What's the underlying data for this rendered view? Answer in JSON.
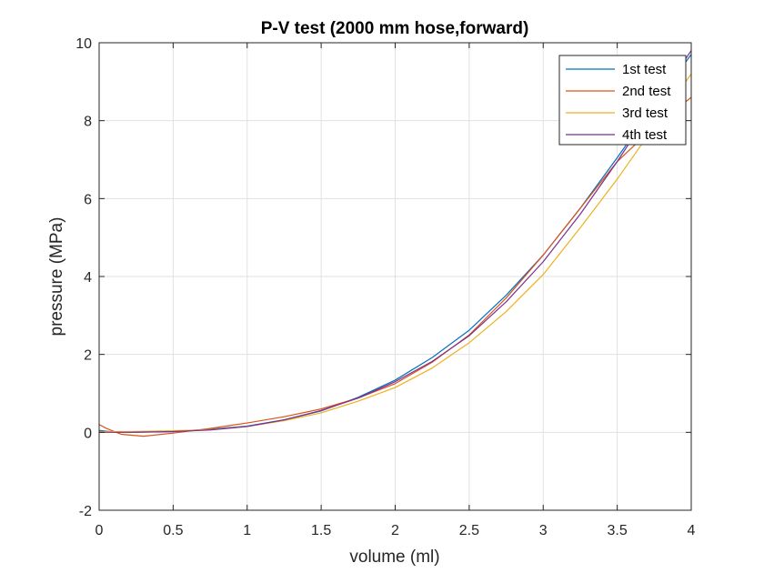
{
  "chart_data": {
    "type": "line",
    "title": "P-V test (2000 mm hose,forward)",
    "xlabel": "volume (ml)",
    "ylabel": "pressure (MPa)",
    "xlim": [
      0,
      4
    ],
    "ylim": [
      -2,
      10
    ],
    "xticks": [
      0,
      0.5,
      1,
      1.5,
      2,
      2.5,
      3,
      3.5,
      4
    ],
    "yticks": [
      -2,
      0,
      2,
      4,
      6,
      8,
      10
    ],
    "xtick_labels": [
      "0",
      "0.5",
      "1",
      "1.5",
      "2",
      "2.5",
      "3",
      "3.5",
      "4"
    ],
    "ytick_labels": [
      "-2",
      "0",
      "2",
      "4",
      "6",
      "8",
      "10"
    ],
    "grid": true,
    "legend_position": "top-right",
    "series": [
      {
        "name": "1st test",
        "color": "#0072BD",
        "x": [
          0,
          0.1,
          0.25,
          0.5,
          0.75,
          1,
          1.25,
          1.5,
          1.75,
          2,
          2.25,
          2.5,
          2.75,
          3,
          3.25,
          3.5,
          3.75,
          4
        ],
        "y": [
          0.05,
          0.01,
          0,
          0.02,
          0.08,
          0.16,
          0.32,
          0.55,
          0.9,
          1.34,
          1.92,
          2.62,
          3.52,
          4.55,
          5.75,
          7.05,
          8.4,
          9.7
        ]
      },
      {
        "name": "2nd test",
        "color": "#D95319",
        "x": [
          0,
          0.05,
          0.15,
          0.3,
          0.5,
          0.75,
          1,
          1.25,
          1.5,
          1.75,
          2,
          2.25,
          2.5,
          2.75,
          3,
          3.25,
          3.5,
          3.75,
          4
        ],
        "y": [
          0.2,
          0.1,
          -0.05,
          -0.1,
          -0.02,
          0.1,
          0.24,
          0.4,
          0.6,
          0.88,
          1.25,
          1.8,
          2.5,
          3.45,
          4.55,
          5.75,
          6.95,
          7.85,
          8.6
        ]
      },
      {
        "name": "3rd test",
        "color": "#EDB120",
        "x": [
          0,
          0.2,
          0.5,
          0.75,
          1,
          1.25,
          1.5,
          1.75,
          2,
          2.25,
          2.5,
          2.75,
          3,
          3.25,
          3.5,
          3.75,
          4
        ],
        "y": [
          0.02,
          0.02,
          0.04,
          0.07,
          0.15,
          0.3,
          0.5,
          0.8,
          1.15,
          1.65,
          2.3,
          3.1,
          4.05,
          5.25,
          6.5,
          7.85,
          9.2
        ]
      },
      {
        "name": "4th test",
        "color": "#7E2F8E",
        "x": [
          0,
          0.2,
          0.5,
          0.75,
          1,
          1.25,
          1.5,
          1.75,
          2,
          2.25,
          2.5,
          2.75,
          3,
          3.25,
          3.5,
          3.75,
          4
        ],
        "y": [
          0,
          0,
          0.02,
          0.06,
          0.15,
          0.32,
          0.56,
          0.88,
          1.3,
          1.82,
          2.48,
          3.35,
          4.38,
          5.6,
          6.95,
          8.4,
          9.8
        ]
      }
    ]
  }
}
